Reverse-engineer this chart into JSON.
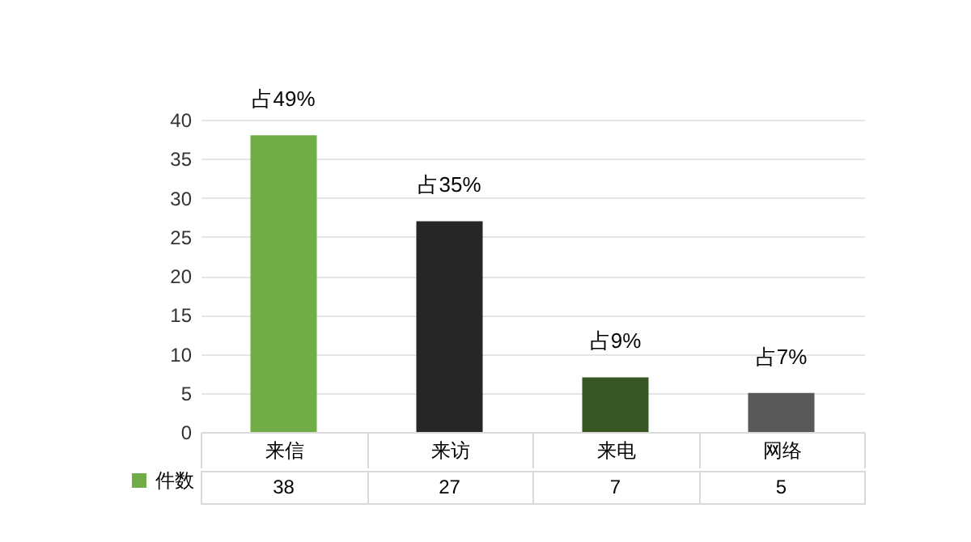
{
  "chart_data": {
    "type": "bar",
    "categories": [
      "来信",
      "来访",
      "来电",
      "网络"
    ],
    "series": [
      {
        "name": "件数",
        "colors": [
          "#70ad47",
          "#262626",
          "#375623",
          "#595959"
        ],
        "values": [
          38,
          27,
          7,
          5
        ]
      }
    ],
    "ylim": [
      0,
      40
    ],
    "yticks": [
      0,
      5,
      10,
      15,
      20,
      25,
      30,
      35,
      40
    ],
    "grid": "y",
    "legend": "bottom left",
    "data_labels": true,
    "annotations": [
      {
        "text": "占49%",
        "x": "来信",
        "y": 38
      },
      {
        "text": "占35%",
        "x": "来访",
        "y": 27
      },
      {
        "text": "占9%",
        "x": "来电",
        "y": 7
      },
      {
        "text": "占7%",
        "x": "网络",
        "y": 5
      }
    ]
  }
}
